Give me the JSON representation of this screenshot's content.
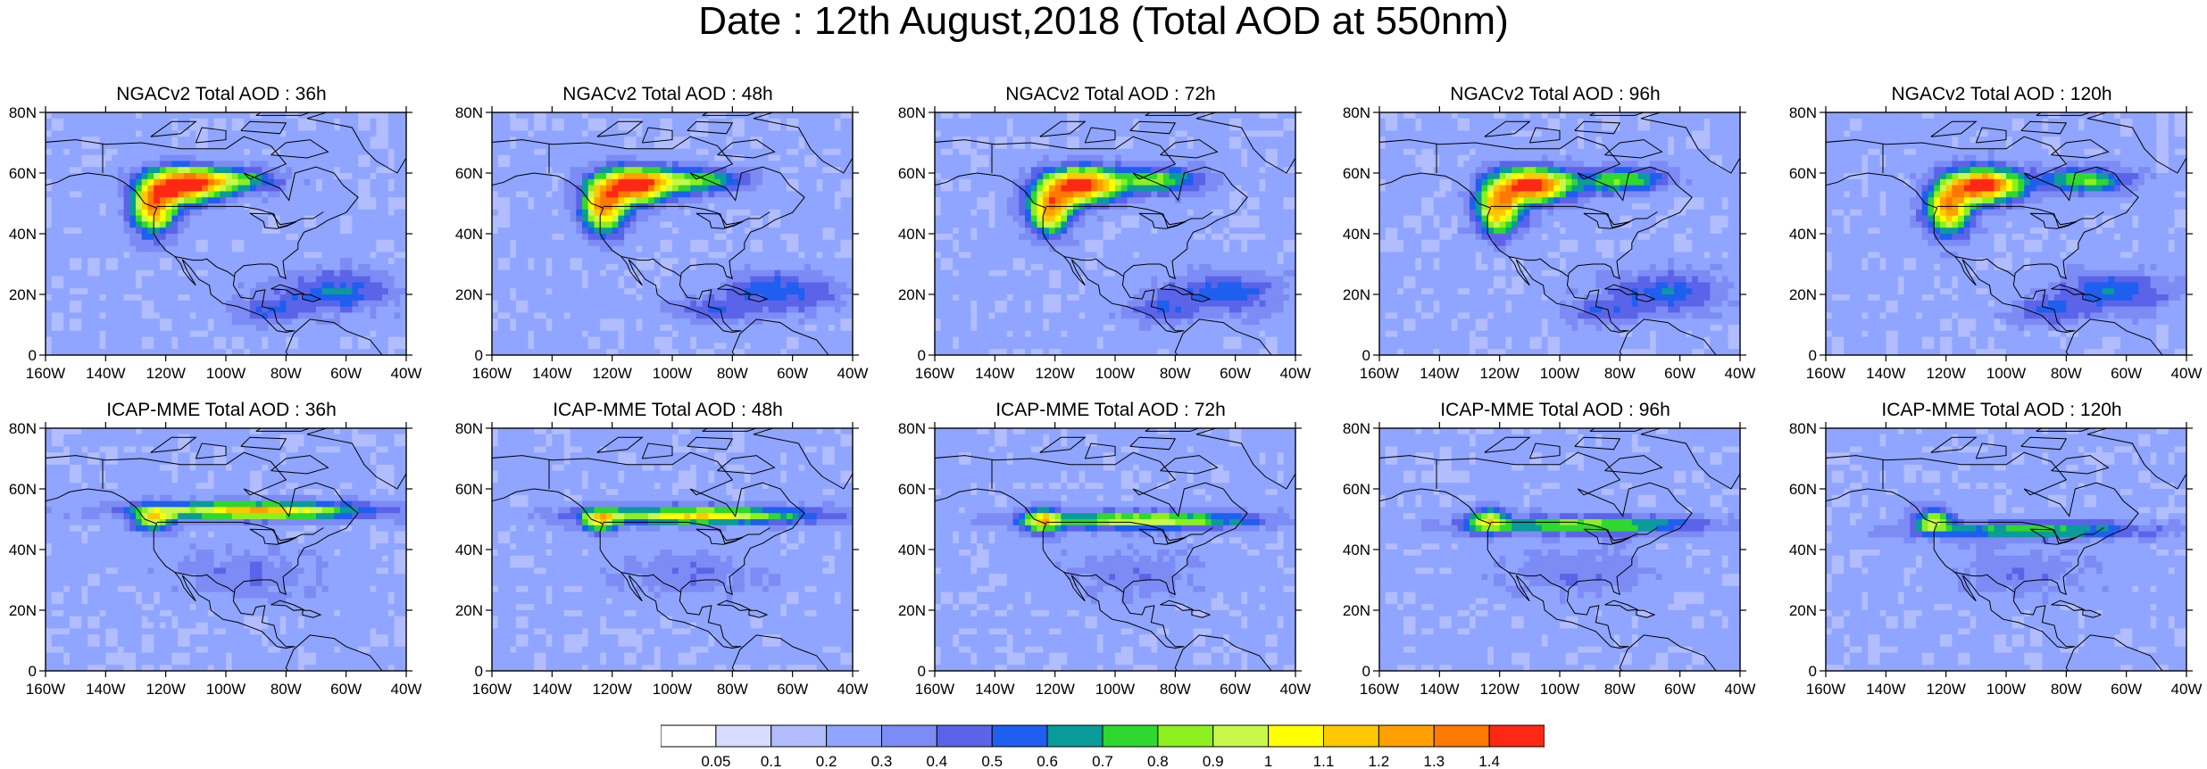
{
  "title": "Date : 12th August,2018 (Total AOD at 550nm)",
  "map": {
    "lat_ticks": [
      "80N",
      "60N",
      "40N",
      "20N",
      "0"
    ],
    "lon_ticks": [
      "160W",
      "140W",
      "120W",
      "100W",
      "80W",
      "60W",
      "40W"
    ],
    "lon_range": [
      -160,
      -40
    ],
    "lat_range": [
      0,
      80
    ]
  },
  "panels": [
    {
      "title": "NGACv2 Total AOD : 36h"
    },
    {
      "title": "NGACv2 Total AOD : 48h"
    },
    {
      "title": "NGACv2 Total AOD : 72h"
    },
    {
      "title": "NGACv2 Total AOD : 96h"
    },
    {
      "title": "NGACv2 Total AOD : 120h"
    },
    {
      "title": "ICAP-MME Total AOD : 36h"
    },
    {
      "title": "ICAP-MME Total AOD : 48h"
    },
    {
      "title": "ICAP-MME Total AOD : 72h"
    },
    {
      "title": "ICAP-MME Total AOD : 96h"
    },
    {
      "title": "ICAP-MME Total AOD : 120h"
    }
  ],
  "colorbar": {
    "labels": [
      "0.05",
      "0.1",
      "0.2",
      "0.3",
      "0.4",
      "0.5",
      "0.6",
      "0.7",
      "0.8",
      "0.9",
      "1",
      "1.1",
      "1.2",
      "1.3",
      "1.4"
    ],
    "colors": [
      "#ffffff",
      "#d6dcff",
      "#b1bdff",
      "#8fa5ff",
      "#7d8bf5",
      "#5b64e8",
      "#1e5ff0",
      "#0a9b9b",
      "#2ed82e",
      "#8cf01e",
      "#c8f84a",
      "#ffff00",
      "#ffc800",
      "#ffa000",
      "#ff7800",
      "#ff2814"
    ]
  }
}
